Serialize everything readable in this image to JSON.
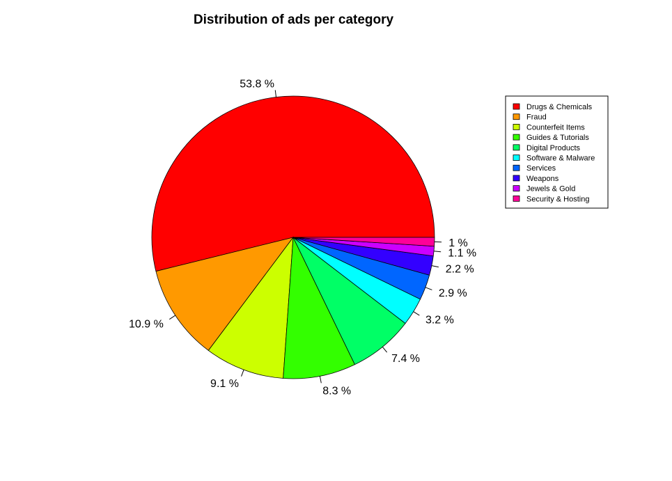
{
  "chart_data": {
    "type": "pie",
    "title": "Distribution of ads per category",
    "categories": [
      "Drugs & Chemicals",
      "Fraud",
      "Counterfeit Items",
      "Guides & Tutorials",
      "Digital Products",
      "Software & Malware",
      "Services",
      "Weapons",
      "Jewels & Gold",
      "Security & Hosting"
    ],
    "values": [
      53.8,
      10.9,
      9.1,
      8.3,
      7.4,
      3.2,
      2.9,
      2.2,
      1.1,
      1.0
    ],
    "labels": [
      "53.8 %",
      "10.9 %",
      "9.1 %",
      "8.3 %",
      "7.4 %",
      "3.2 %",
      "2.9 %",
      "2.2 %",
      "1.1 %",
      "1 %"
    ],
    "colors": [
      "#FF0000",
      "#FF9900",
      "#CCFF00",
      "#33FF00",
      "#00FF66",
      "#00FFFF",
      "#0066FF",
      "#3300FF",
      "#CC00FF",
      "#FF0099"
    ],
    "legend_position": "right",
    "start": "counterclockwise from 3 o'clock"
  }
}
